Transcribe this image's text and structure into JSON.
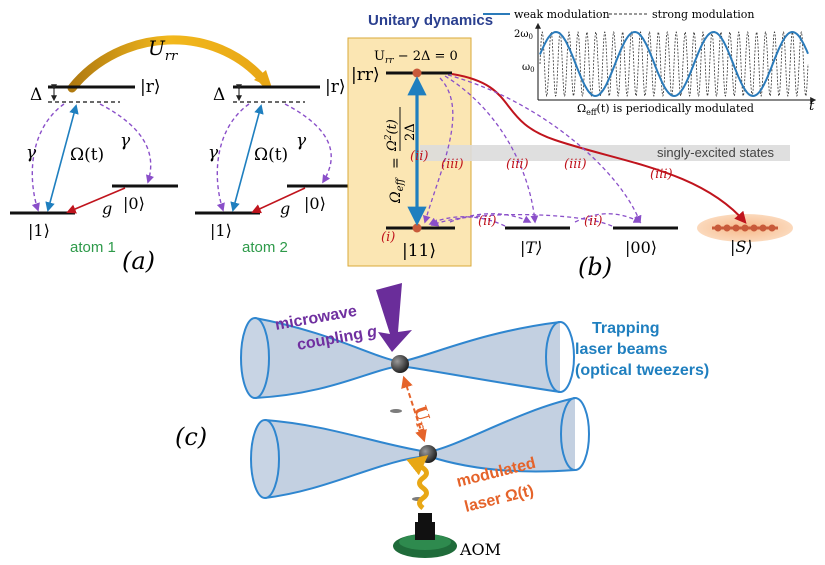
{
  "panel_a": {
    "urr": "U",
    "urr_sub": "rr",
    "atom1": {
      "delta": "Δ",
      "r": "|r⟩",
      "gamma_l": "γ",
      "gamma_r": "γ",
      "omega": "Ω(t)",
      "g": "g",
      "one": "|1⟩",
      "zero": "|0⟩",
      "atom": "atom 1"
    },
    "atom2": {
      "delta": "Δ",
      "r": "|r⟩",
      "gamma_l": "γ",
      "gamma_r": "γ",
      "omega": "Ω(t)",
      "g": "g",
      "one": "|1⟩",
      "zero": "|0⟩",
      "atom": "atom 2"
    },
    "label": "(a)"
  },
  "panel_b": {
    "title": "Unitary dynamics",
    "resonance": "U",
    "resonance_sub": "rr",
    "resonance_tail": " − 2Δ = 0",
    "rr": "|rr⟩",
    "omega_eff_lhs": "Ω",
    "omega_eff_sub": "eff",
    "omega_eff_eq": "=",
    "omega_num": "Ω",
    "omega_num_sup": "2",
    "omega_num_tail": "(t)",
    "omega_den": "2Δ",
    "singly": "singly-excited states",
    "states": {
      "s11": "|11⟩",
      "sT": "|T⟩",
      "s00": "|00⟩",
      "sS": "|S⟩"
    },
    "markers": {
      "i": "(i)",
      "ii": "(ii)",
      "iii": "(iii)"
    },
    "label": "(b)"
  },
  "inset": {
    "legend_weak": "weak modulation",
    "legend_strong": "strong modulation",
    "ytick_top": "2ω",
    "ytick_top_sub": "0",
    "ylabel": "ω",
    "ylabel_sub": "0",
    "caption": "Ω",
    "caption_sub": "eff",
    "caption_tail": "(t) is periodically modulated",
    "xlabel": "t",
    "weak_color": "#2b7bba",
    "strong_color": "#333333"
  },
  "panel_c": {
    "mw1": "microwave",
    "mw2": "coupling ",
    "mw_g": "g",
    "trap1": "Trapping",
    "trap2": "laser beams",
    "trap3": "(optical tweezers)",
    "urr": "U",
    "urr_sub": "rr",
    "mod1": "modulated",
    "mod2": "laser ",
    "mod_omega": "Ω(t)",
    "aom": "AOM",
    "label": "(c)"
  },
  "colors": {
    "blue_arrow": "#1f7fbf",
    "red_arrow": "#c0141d",
    "purple": "#8a4fc9",
    "title_blue": "#2a3f8f",
    "green_label": "#2e9a4a",
    "box_fill": "#fbe6b3",
    "gold": "#e8a715",
    "beam_fill": "#b9c8dc",
    "beam_edge": "#2f86cf",
    "mw_purple": "#7030a0",
    "trap_text": "#1f7fbf",
    "orange": "#e5632a"
  }
}
